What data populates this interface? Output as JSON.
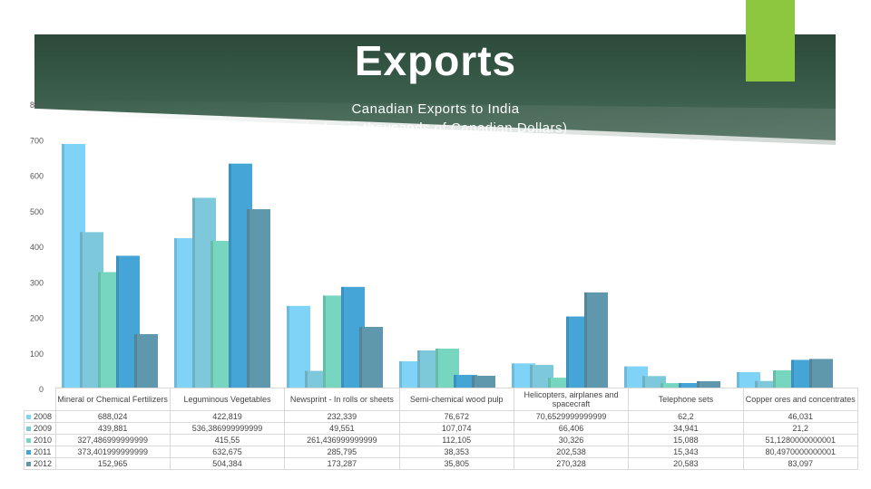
{
  "slide": {
    "title": "Exports",
    "accent_color": "#8dc63f",
    "banner_color": "#2c4a3a"
  },
  "chart_data": {
    "type": "bar",
    "title": "Canadian Exports to India\n(value in thousands of Canadian Dollars)",
    "title_line1": "Canadian Exports to India",
    "title_line2": "(value in thousands of Canadian Dollars)",
    "ylim": [
      0,
      800
    ],
    "yticks": [
      "0",
      "100",
      "200",
      "300",
      "400",
      "500",
      "600",
      "700",
      "800"
    ],
    "grid": false,
    "legend": "table-rows",
    "categories": [
      "Mineral or Chemical Fertilizers",
      "Leguminous Vegetables",
      "Newsprint - In rolls or sheets",
      "Semi-chemical wood pulp",
      "Helicopters, airplanes and spacecraft",
      "Telephone sets",
      "Copper ores and concentrates"
    ],
    "series": [
      {
        "name": "2008",
        "color": "#7fd3f7",
        "values": [
          688.024,
          422.819,
          232.339,
          76.672,
          70.6529999999999,
          62.2,
          46.031
        ],
        "labels": [
          "688,024",
          "422,819",
          "232,339",
          "76,672",
          "70,6529999999999",
          "62,2",
          "46,031"
        ]
      },
      {
        "name": "2009",
        "color": "#7ec8dc",
        "values": [
          439.881,
          536.386999999999,
          49.551,
          107.074,
          66.406,
          34.941,
          21.2
        ],
        "labels": [
          "439,881",
          "536,386999999999",
          "49,551",
          "107,074",
          "66,406",
          "34,941",
          "21,2"
        ]
      },
      {
        "name": "2010",
        "color": "#76d6bf",
        "values": [
          327.486999999999,
          415.55,
          261.436999999999,
          112.105,
          30.326,
          15.088,
          51.1280000000001
        ],
        "labels": [
          "327,486999999999",
          "415,55",
          "261,436999999999",
          "112,105",
          "30,326",
          "15,088",
          "51,1280000000001"
        ]
      },
      {
        "name": "2011",
        "color": "#44a5d6",
        "values": [
          373.401999999999,
          632.675,
          285.795,
          38.353,
          202.538,
          15.343,
          80.4970000000001
        ],
        "labels": [
          "373,401999999999",
          "632,675",
          "285,795",
          "38,353",
          "202,538",
          "15,343",
          "80,4970000000001"
        ]
      },
      {
        "name": "2012",
        "color": "#5f97ac",
        "values": [
          152.965,
          504.384,
          173.287,
          35.805,
          270.328,
          20.583,
          83.097
        ],
        "labels": [
          "152,965",
          "504,384",
          "173,287",
          "35,805",
          "270,328",
          "20,583",
          "83,097"
        ]
      }
    ]
  }
}
